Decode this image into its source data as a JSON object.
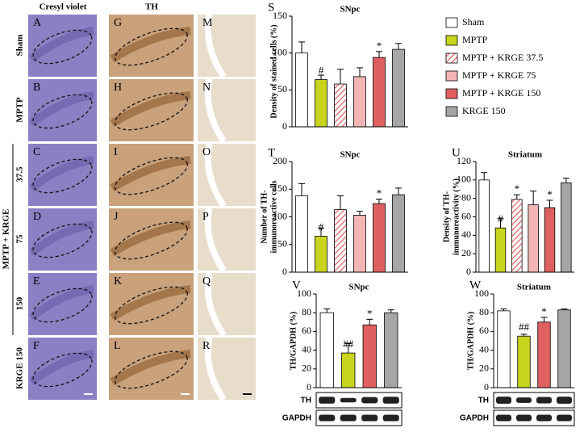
{
  "figure": {
    "column_titles": [
      "Cresyl violet",
      "TH"
    ],
    "panels": [
      [
        "A",
        "G",
        "M"
      ],
      [
        "B",
        "H",
        "N"
      ],
      [
        "C",
        "I",
        "O"
      ],
      [
        "D",
        "J",
        "P"
      ],
      [
        "E",
        "K",
        "Q"
      ],
      [
        "F",
        "L",
        "R"
      ]
    ],
    "row_labels": [
      "Sham",
      "MPTP",
      "37.5",
      "75",
      "150",
      "KRGE 150"
    ],
    "group_label": "MPTP + KRGE"
  },
  "chart_data": [
    {
      "type": "bar",
      "panel": "S",
      "title": "SNpc",
      "y_label": [
        "Density of stained cells (%)"
      ],
      "values": [
        100,
        64,
        58,
        68,
        94,
        105
      ],
      "errors": [
        15,
        6,
        20,
        12,
        8,
        8
      ],
      "markers": [
        null,
        "#",
        null,
        null,
        "*",
        null
      ],
      "colors": [
        "#ffffff",
        "#c8d41e",
        "#e06060",
        "#f4b5b5",
        "#e06060",
        "#a6a6a6"
      ],
      "hatched": [
        false,
        false,
        true,
        false,
        false,
        false
      ],
      "legend": [
        "Sham",
        "MPTP",
        "MPTP + KRGE  37.5",
        "MPTP + KRGE  75",
        "MPTP + KRGE  150",
        "KRGE  150"
      ],
      "ylim": [
        0,
        150
      ],
      "yticks": [
        0,
        50,
        100,
        150
      ]
    },
    {
      "type": "bar",
      "panel": "T",
      "title": "SNpc",
      "y_label": [
        "Number of TH-",
        "immunoreactive cells"
      ],
      "values": [
        138,
        65,
        113,
        103,
        124,
        140
      ],
      "errors": [
        22,
        15,
        25,
        7,
        8,
        12
      ],
      "markers": [
        null,
        "#",
        null,
        null,
        "*",
        null
      ],
      "colors": [
        "#ffffff",
        "#c8d41e",
        "#e06060",
        "#f4b5b5",
        "#e06060",
        "#a6a6a6"
      ],
      "hatched": [
        false,
        false,
        true,
        false,
        false,
        false
      ],
      "ylim": [
        0,
        200
      ],
      "yticks": [
        0,
        50,
        100,
        150,
        200
      ]
    },
    {
      "type": "bar",
      "panel": "U",
      "title": "Striatum",
      "y_label": [
        "Density of TH-",
        "immunoreactivity (%)"
      ],
      "values": [
        100,
        48,
        79,
        73,
        70,
        97
      ],
      "errors": [
        8,
        10,
        5,
        15,
        8,
        5
      ],
      "markers": [
        null,
        "#",
        "*",
        null,
        "*",
        null
      ],
      "colors": [
        "#ffffff",
        "#c8d41e",
        "#e06060",
        "#f4b5b5",
        "#e06060",
        "#a6a6a6"
      ],
      "hatched": [
        false,
        false,
        true,
        false,
        false,
        false
      ],
      "ylim": [
        0,
        120
      ],
      "yticks": [
        0,
        20,
        40,
        60,
        80,
        100,
        120
      ]
    },
    {
      "type": "bar",
      "panel": "V",
      "title": "SNpc",
      "y_label": [
        "TH/GAPDH (%)"
      ],
      "values": [
        80,
        37,
        67,
        80
      ],
      "errors": [
        4,
        10,
        6,
        3
      ],
      "markers": [
        null,
        "##",
        "*",
        null
      ],
      "colors": [
        "#ffffff",
        "#c8d41e",
        "#e06060",
        "#a6a6a6"
      ],
      "hatched": [
        false,
        false,
        false,
        false
      ],
      "blot_labels": [
        "TH",
        "GAPDH"
      ],
      "ylim": [
        0,
        100
      ],
      "yticks": [
        0,
        20,
        40,
        60,
        80,
        100
      ]
    },
    {
      "type": "bar",
      "panel": "W",
      "title": "Striatum",
      "y_label": [
        "TH/GAPDH (%)"
      ],
      "values": [
        82,
        55,
        70,
        83
      ],
      "errors": [
        2,
        2,
        5,
        1
      ],
      "markers": [
        null,
        "##",
        "*",
        null
      ],
      "colors": [
        "#ffffff",
        "#c8d41e",
        "#e06060",
        "#a6a6a6"
      ],
      "hatched": [
        false,
        false,
        false,
        false
      ],
      "blot_labels": [
        "TH",
        "GAPDH"
      ],
      "ylim": [
        0,
        100
      ],
      "yticks": [
        0,
        20,
        40,
        60,
        80,
        100
      ]
    }
  ]
}
